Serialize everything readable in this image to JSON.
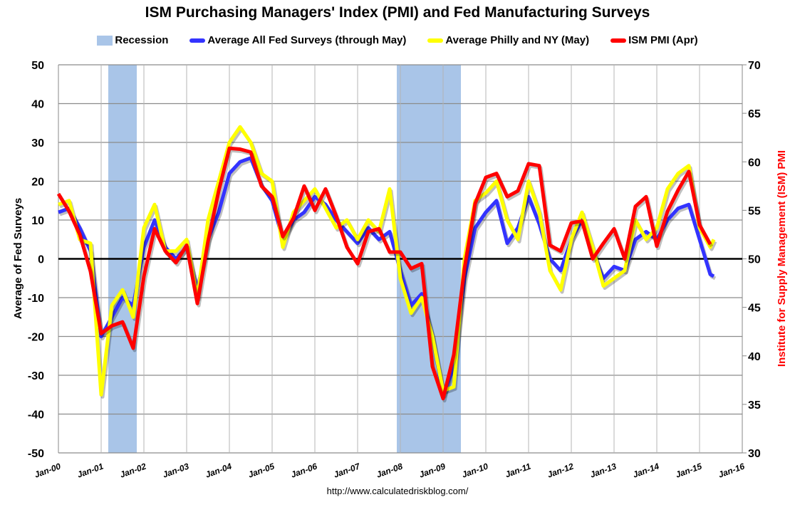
{
  "chart_data": {
    "type": "line",
    "title": "ISM Purchasing Managers' Index (PMI) and Fed Manufacturing Surveys",
    "ylabel": "Average of Fed Surveys",
    "ylabel_right": "Institute for Supply Management (ISM) PMI",
    "ylim": [
      -50,
      50
    ],
    "ylim_right": [
      30,
      70
    ],
    "yticks": [
      "50",
      "40",
      "30",
      "20",
      "10",
      "0",
      "-10",
      "-20",
      "-30",
      "-40",
      "-50"
    ],
    "yticks_right": [
      "70",
      "65",
      "60",
      "55",
      "50",
      "45",
      "40",
      "35",
      "30"
    ],
    "xticks": [
      "Jan-00",
      "Jan-01",
      "Jan-02",
      "Jan-03",
      "Jan-04",
      "Jan-05",
      "Jan-06",
      "Jan-07",
      "Jan-08",
      "Jan-09",
      "Jan-10",
      "Jan-11",
      "Jan-12",
      "Jan-13",
      "Jan-14",
      "Jan-15",
      "Jan-16"
    ],
    "xlim": [
      "2000-01",
      "2016-01"
    ],
    "grid": true,
    "legend_placement": "top",
    "source": "http://www.calculatedriskblog.com/",
    "recessions": {
      "name": "Recession",
      "color": "#a9c5e8",
      "periods": [
        [
          "2001-03",
          "2001-11"
        ],
        [
          "2007-12",
          "2009-06"
        ]
      ]
    },
    "series": [
      {
        "name": "Average All Fed Surveys (through May)",
        "color": "#3333ff",
        "axis": "left",
        "points": [
          [
            "2000-01",
            12
          ],
          [
            "2000-04",
            13
          ],
          [
            "2000-07",
            8
          ],
          [
            "2000-10",
            2
          ],
          [
            "2001-01",
            -20
          ],
          [
            "2001-04",
            -15
          ],
          [
            "2001-07",
            -10
          ],
          [
            "2001-10",
            -12
          ],
          [
            "2002-01",
            3
          ],
          [
            "2002-04",
            10
          ],
          [
            "2002-07",
            3
          ],
          [
            "2002-10",
            0
          ],
          [
            "2003-01",
            3
          ],
          [
            "2003-04",
            -8
          ],
          [
            "2003-07",
            5
          ],
          [
            "2003-10",
            12
          ],
          [
            "2004-01",
            22
          ],
          [
            "2004-04",
            25
          ],
          [
            "2004-07",
            26
          ],
          [
            "2004-10",
            19
          ],
          [
            "2005-01",
            15
          ],
          [
            "2005-04",
            5
          ],
          [
            "2005-07",
            10
          ],
          [
            "2005-10",
            12
          ],
          [
            "2006-01",
            16
          ],
          [
            "2006-04",
            14
          ],
          [
            "2006-07",
            10
          ],
          [
            "2006-10",
            7
          ],
          [
            "2007-01",
            4
          ],
          [
            "2007-04",
            8
          ],
          [
            "2007-07",
            5
          ],
          [
            "2007-10",
            7
          ],
          [
            "2008-01",
            -3
          ],
          [
            "2008-04",
            -12
          ],
          [
            "2008-07",
            -9
          ],
          [
            "2008-10",
            -20
          ],
          [
            "2009-01",
            -35
          ],
          [
            "2009-04",
            -28
          ],
          [
            "2009-07",
            -5
          ],
          [
            "2009-10",
            8
          ],
          [
            "2010-01",
            12
          ],
          [
            "2010-04",
            15
          ],
          [
            "2010-07",
            4
          ],
          [
            "2010-10",
            8
          ],
          [
            "2011-01",
            16
          ],
          [
            "2011-04",
            9
          ],
          [
            "2011-07",
            0
          ],
          [
            "2011-10",
            -3
          ],
          [
            "2012-01",
            5
          ],
          [
            "2012-04",
            10
          ],
          [
            "2012-07",
            2
          ],
          [
            "2012-10",
            -5
          ],
          [
            "2013-01",
            -2
          ],
          [
            "2013-04",
            -3
          ],
          [
            "2013-07",
            5
          ],
          [
            "2013-10",
            7
          ],
          [
            "2014-01",
            5
          ],
          [
            "2014-04",
            10
          ],
          [
            "2014-07",
            13
          ],
          [
            "2014-10",
            14
          ],
          [
            "2015-01",
            5
          ],
          [
            "2015-04",
            -4
          ],
          [
            "2015-05",
            -4.5
          ]
        ]
      },
      {
        "name": "Average Philly and NY (May)",
        "color": "#ffff00",
        "axis": "left",
        "points": [
          [
            "2000-01",
            14
          ],
          [
            "2000-04",
            15
          ],
          [
            "2000-07",
            5
          ],
          [
            "2000-10",
            4
          ],
          [
            "2001-01",
            -35
          ],
          [
            "2001-04",
            -12
          ],
          [
            "2001-07",
            -8
          ],
          [
            "2001-10",
            -15
          ],
          [
            "2002-01",
            8
          ],
          [
            "2002-04",
            14
          ],
          [
            "2002-07",
            2
          ],
          [
            "2002-10",
            2
          ],
          [
            "2003-01",
            5
          ],
          [
            "2003-04",
            -10
          ],
          [
            "2003-07",
            10
          ],
          [
            "2003-10",
            20
          ],
          [
            "2004-01",
            30
          ],
          [
            "2004-04",
            34
          ],
          [
            "2004-07",
            30
          ],
          [
            "2004-10",
            22
          ],
          [
            "2005-01",
            20
          ],
          [
            "2005-04",
            3
          ],
          [
            "2005-07",
            12
          ],
          [
            "2005-10",
            15
          ],
          [
            "2006-01",
            18
          ],
          [
            "2006-04",
            13
          ],
          [
            "2006-07",
            8
          ],
          [
            "2006-10",
            10
          ],
          [
            "2007-01",
            5
          ],
          [
            "2007-04",
            10
          ],
          [
            "2007-07",
            7
          ],
          [
            "2007-10",
            18
          ],
          [
            "2008-01",
            -5
          ],
          [
            "2008-04",
            -14
          ],
          [
            "2008-07",
            -10
          ],
          [
            "2008-10",
            -20
          ],
          [
            "2009-01",
            -34
          ],
          [
            "2009-04",
            -33
          ],
          [
            "2009-07",
            0
          ],
          [
            "2009-10",
            15
          ],
          [
            "2010-01",
            17
          ],
          [
            "2010-04",
            20
          ],
          [
            "2010-07",
            10
          ],
          [
            "2010-10",
            5
          ],
          [
            "2011-01",
            20
          ],
          [
            "2011-04",
            12
          ],
          [
            "2011-07",
            -3
          ],
          [
            "2011-10",
            -8
          ],
          [
            "2012-01",
            5
          ],
          [
            "2012-04",
            12
          ],
          [
            "2012-07",
            3
          ],
          [
            "2012-10",
            -7
          ],
          [
            "2013-01",
            -5
          ],
          [
            "2013-04",
            -3
          ],
          [
            "2013-07",
            10
          ],
          [
            "2013-10",
            5
          ],
          [
            "2014-01",
            8
          ],
          [
            "2014-04",
            18
          ],
          [
            "2014-07",
            22
          ],
          [
            "2014-10",
            24
          ],
          [
            "2015-01",
            8
          ],
          [
            "2015-04",
            3
          ],
          [
            "2015-05",
            5
          ]
        ]
      },
      {
        "name": "ISM PMI (Apr)",
        "color": "#ff0000",
        "axis": "right",
        "points": [
          [
            "2000-01",
            56.7
          ],
          [
            "2000-04",
            54.9
          ],
          [
            "2000-07",
            52.5
          ],
          [
            "2000-10",
            48.7
          ],
          [
            "2001-01",
            42.3
          ],
          [
            "2001-04",
            43.1
          ],
          [
            "2001-07",
            43.5
          ],
          [
            "2001-10",
            40.8
          ],
          [
            "2002-01",
            48.2
          ],
          [
            "2002-04",
            53.1
          ],
          [
            "2002-07",
            50.8
          ],
          [
            "2002-10",
            49.6
          ],
          [
            "2003-01",
            51.4
          ],
          [
            "2003-04",
            45.4
          ],
          [
            "2003-07",
            51.8
          ],
          [
            "2003-10",
            57.0
          ],
          [
            "2004-01",
            61.4
          ],
          [
            "2004-04",
            61.3
          ],
          [
            "2004-07",
            61.0
          ],
          [
            "2004-10",
            57.5
          ],
          [
            "2005-01",
            56.4
          ],
          [
            "2005-04",
            52.3
          ],
          [
            "2005-07",
            54.2
          ],
          [
            "2005-10",
            57.5
          ],
          [
            "2006-01",
            55.0
          ],
          [
            "2006-04",
            57.2
          ],
          [
            "2006-07",
            54.4
          ],
          [
            "2006-10",
            51.2
          ],
          [
            "2007-01",
            49.5
          ],
          [
            "2007-04",
            52.8
          ],
          [
            "2007-07",
            53.1
          ],
          [
            "2007-10",
            50.7
          ],
          [
            "2008-01",
            50.7
          ],
          [
            "2008-04",
            49.0
          ],
          [
            "2008-07",
            49.5
          ],
          [
            "2008-10",
            38.9
          ],
          [
            "2009-01",
            35.6
          ],
          [
            "2009-04",
            40.1
          ],
          [
            "2009-07",
            49.0
          ],
          [
            "2009-10",
            55.7
          ],
          [
            "2010-01",
            58.4
          ],
          [
            "2010-04",
            58.8
          ],
          [
            "2010-07",
            56.4
          ],
          [
            "2010-10",
            57.0
          ],
          [
            "2011-01",
            59.8
          ],
          [
            "2011-04",
            59.6
          ],
          [
            "2011-07",
            51.4
          ],
          [
            "2011-10",
            50.8
          ],
          [
            "2012-01",
            53.7
          ],
          [
            "2012-04",
            53.9
          ],
          [
            "2012-07",
            50.0
          ],
          [
            "2012-10",
            51.6
          ],
          [
            "2013-01",
            53.1
          ],
          [
            "2013-04",
            50.0
          ],
          [
            "2013-07",
            55.4
          ],
          [
            "2013-10",
            56.4
          ],
          [
            "2014-01",
            51.3
          ],
          [
            "2014-04",
            54.9
          ],
          [
            "2014-07",
            57.1
          ],
          [
            "2014-10",
            59.0
          ],
          [
            "2015-01",
            53.5
          ],
          [
            "2015-04",
            51.5
          ]
        ]
      }
    ]
  }
}
